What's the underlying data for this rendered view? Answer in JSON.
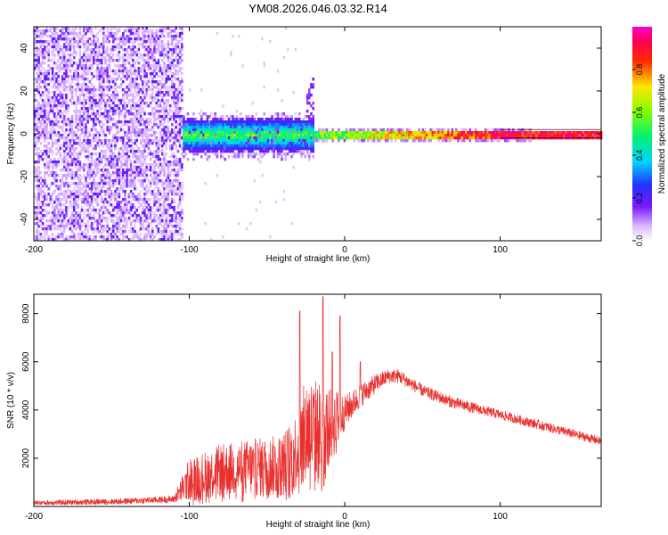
{
  "title": "YM08.2026.046.03.32.R14",
  "colors": {
    "snr_line": "#e8312f",
    "axis": "#000000",
    "background": "#ffffff"
  },
  "chart_data": [
    {
      "type": "heatmap",
      "name": "spectrogram",
      "xlabel": "Height of straight line (km)",
      "ylabel": "Frequency (Hz)",
      "xlim": [
        -200,
        165
      ],
      "ylim": [
        -50,
        50
      ],
      "xticks": [
        -200,
        -100,
        0,
        100
      ],
      "yticks": [
        -40,
        -20,
        0,
        20,
        40
      ],
      "colorscale": "rainbow (white-purple-blue-cyan-green-yellow-red-magenta)",
      "colorbar": {
        "label": "Normalized spectral amplitude",
        "range": [
          0,
          1
        ],
        "ticks": [
          0.0,
          0.2,
          0.4,
          0.6,
          0.8
        ]
      },
      "features": [
        {
          "region": "noise",
          "x_range": [
            -200,
            -105
          ],
          "freq_range": [
            -50,
            50
          ],
          "amplitude": "0.05-0.25 scattered"
        },
        {
          "region": "broadened carrier",
          "x_range": [
            -105,
            -20
          ],
          "freq_center": 0,
          "freq_halfwidth": 7,
          "amplitude": "0.2-0.5"
        },
        {
          "region": "spur",
          "x_range": [
            -25,
            -18
          ],
          "freq_range": [
            5,
            30
          ],
          "amplitude": "0.1-0.2"
        },
        {
          "region": "narrow carrier",
          "x_range": [
            -20,
            165
          ],
          "freq_center": 0,
          "freq_halfwidth": 1.5,
          "amplitude": "0.5-1.0"
        }
      ]
    },
    {
      "type": "line",
      "name": "snr",
      "xlabel": "Height of straight line (km)",
      "ylabel": "SNR (10 * v/v)",
      "xlim": [
        -200,
        165
      ],
      "ylim": [
        0,
        8800
      ],
      "xticks": [
        -200,
        -100,
        0,
        100
      ],
      "yticks": [
        2000,
        4000,
        6000,
        8000
      ],
      "series": [
        {
          "envelope": {
            "x": [
              -200,
              -150,
              -110,
              -100,
              -80,
              -60,
              -40,
              -30,
              -25,
              -20,
              -15,
              -10,
              -5,
              0,
              10,
              20,
              28,
              35,
              50,
              70,
              100,
              130,
              165
            ],
            "center": [
              150,
              200,
              300,
              1100,
              1500,
              1600,
              1700,
              2400,
              3200,
              3100,
              3000,
              3300,
              3600,
              3900,
              4600,
              5100,
              5400,
              5400,
              4800,
              4300,
              3800,
              3300,
              2700
            ],
            "noise_halfwidth": [
              100,
              120,
              150,
              900,
              1100,
              1200,
              1300,
              1700,
              2200,
              2300,
              2200,
              1600,
              1300,
              700,
              500,
              400,
              300,
              300,
              250,
              250,
              200,
              200,
              180
            ]
          },
          "peaks": [
            {
              "x": -29,
              "y": 8100
            },
            {
              "x": -14,
              "y": 8700
            },
            {
              "x": -8,
              "y": 6400
            },
            {
              "x": -3,
              "y": 7900
            },
            {
              "x": 10,
              "y": 6000
            }
          ]
        }
      ]
    }
  ]
}
